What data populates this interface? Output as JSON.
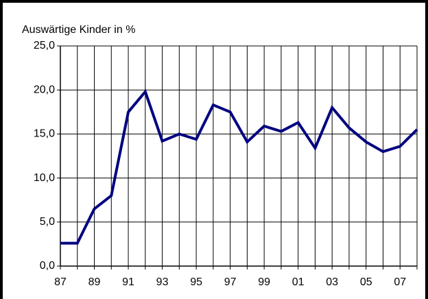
{
  "chart_data": {
    "type": "line",
    "title": "Auswärtige Kinder in %",
    "categories": [
      "87",
      null,
      "89",
      null,
      "91",
      null,
      "93",
      null,
      "95",
      null,
      "97",
      null,
      "99",
      null,
      "01",
      null,
      "03",
      null,
      "05",
      null,
      "07",
      null
    ],
    "series": [
      {
        "name": "Auswärtige Kinder",
        "color": "#000080",
        "values": [
          2.6,
          2.6,
          6.5,
          8.0,
          17.5,
          19.8,
          14.2,
          15.0,
          14.4,
          18.3,
          17.5,
          14.1,
          15.9,
          15.3,
          16.3,
          13.4,
          18.0,
          15.7,
          14.1,
          13.0,
          13.6,
          15.5
        ]
      }
    ],
    "ylim": [
      0,
      25
    ],
    "yticks": [
      {
        "value": 0,
        "label": "0,0"
      },
      {
        "value": 5,
        "label": "5,0"
      },
      {
        "value": 10,
        "label": "10,0"
      },
      {
        "value": 15,
        "label": "15,0"
      },
      {
        "value": 20,
        "label": "20,0"
      },
      {
        "value": 25,
        "label": "25,0"
      }
    ],
    "grid": true
  }
}
